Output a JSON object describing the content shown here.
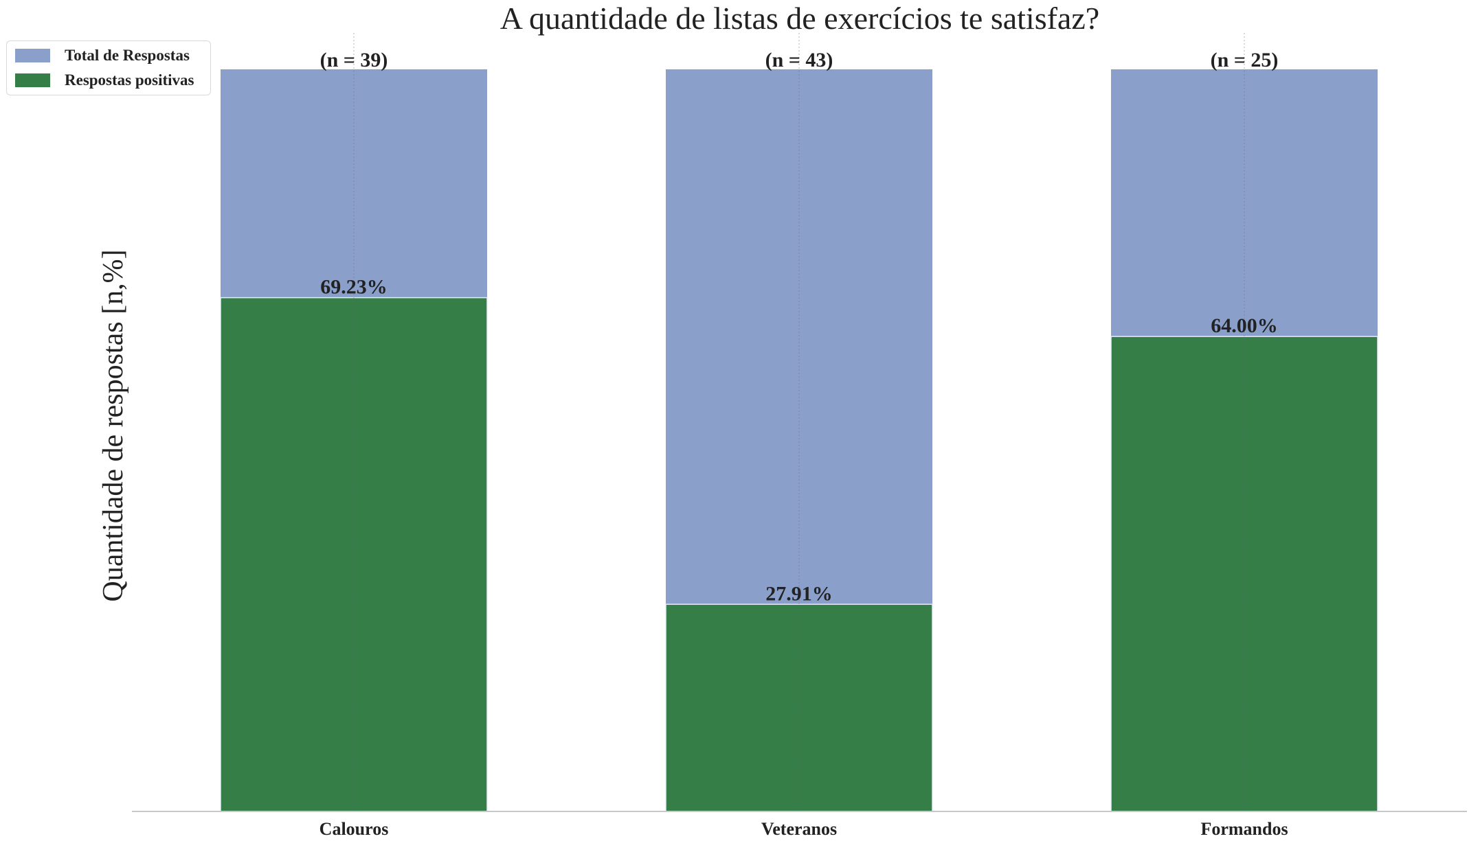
{
  "chart_data": {
    "type": "bar",
    "title": "A quantidade de listas de exercícios te satisfaz?",
    "ylabel": "Quantidade de respostas [n,%]",
    "xlabel": "",
    "categories": [
      "Calouros",
      "Veteranos",
      "Formandos"
    ],
    "series": [
      {
        "name": "Total de Respostas",
        "color": "#8aa0ca",
        "values": [
          100,
          100,
          100
        ]
      },
      {
        "name": "Respostas positivas",
        "color": "#357e47",
        "values": [
          69.23,
          27.91,
          64.0
        ]
      }
    ],
    "total_labels": [
      "(n = 39)",
      "(n = 43)",
      "(n = 25)"
    ],
    "positive_labels": [
      "69.23%",
      "27.91%",
      "64.00%"
    ],
    "ylim": [
      0,
      100
    ],
    "grid": "vertical-dotted",
    "legend_position": "top-left"
  }
}
